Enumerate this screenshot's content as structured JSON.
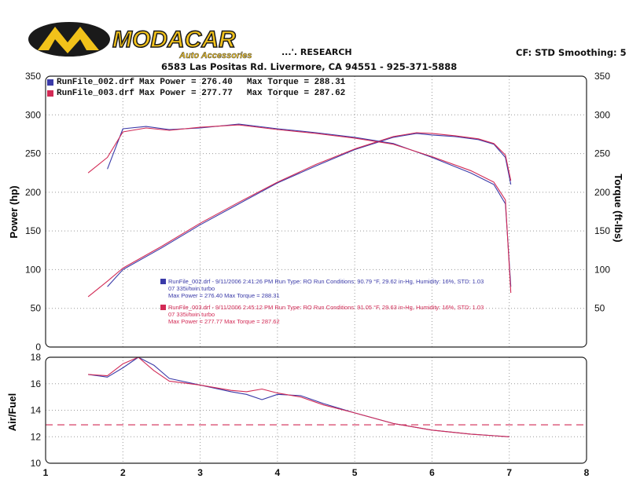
{
  "header": {
    "logo_text": "MODACAR",
    "logo_sub": "Auto Accessories",
    "shop_fragment": "...'. RESEARCH",
    "address": "6583 Las Positas Rd. Livermore, CA 94551 - 925-371-5888",
    "cf_smoothing": "CF: STD  Smoothing: 5"
  },
  "legend": [
    {
      "file": "RunFile_002.drf",
      "power_label": "Max Power = 276.40",
      "torque_label": "Max Torque = 288.31",
      "color": "#3a3aa8"
    },
    {
      "file": "RunFile_003.drf",
      "power_label": "Max Power = 277.77",
      "torque_label": "Max Torque = 287.62",
      "color": "#d22a55"
    }
  ],
  "runinfo": [
    {
      "line1": "RunFile_002.drf - 9/11/2006 2:41:26 PM  Run Type: RO  Run Conditions: 90.79 °F, 29.62 in-Hg,  Humidity: 16%, STD: 1.03",
      "line2": "07 335i/twin turbo",
      "line3": "Max Power = 276.40   Max Torque = 288.31",
      "color": "#3a3aa8"
    },
    {
      "line1": "RunFile_003.drf - 9/11/2006 2:45:12 PM  Run Type: RO  Run Conditions: 91.05 °F, 29.63 in-Hg,  Humidity: 16%, STD: 1.03",
      "line2": "07 335i/twin turbo",
      "line3": "Max Power = 277.77   Max Torque = 287.62",
      "color": "#d22a55"
    }
  ],
  "chart_data": [
    {
      "type": "line",
      "ylabel": "Power (hp)",
      "ylabel_right": "Torque (ft-lbs)",
      "xlim": [
        1,
        8
      ],
      "ylim": [
        0,
        350
      ],
      "yticks": [
        0,
        50,
        100,
        150,
        200,
        250,
        300,
        350
      ],
      "yticks_right": [
        50,
        100,
        150,
        200,
        250,
        300,
        350
      ],
      "grid": true,
      "series": [
        {
          "name": "RunFile_002.drf",
          "metric": "power",
          "color": "#3a3aa8",
          "x": [
            1.8,
            2.0,
            2.5,
            3.0,
            3.5,
            4.0,
            4.5,
            5.0,
            5.5,
            5.8,
            6.0,
            6.3,
            6.6,
            6.8,
            6.95,
            7.02
          ],
          "y": [
            78,
            100,
            128,
            158,
            185,
            212,
            234,
            255,
            271,
            276,
            274,
            272,
            268,
            262,
            245,
            210
          ]
        },
        {
          "name": "RunFile_003.drf",
          "metric": "power",
          "color": "#d22a55",
          "x": [
            1.55,
            1.8,
            2.0,
            2.5,
            3.0,
            3.5,
            4.0,
            4.5,
            5.0,
            5.5,
            5.8,
            6.0,
            6.3,
            6.6,
            6.8,
            6.95,
            7.02
          ],
          "y": [
            65,
            85,
            102,
            130,
            160,
            187,
            213,
            236,
            256,
            272,
            277,
            276,
            273,
            269,
            263,
            248,
            215
          ]
        },
        {
          "name": "RunFile_002.drf",
          "metric": "torque",
          "color": "#3a3aa8",
          "x": [
            1.8,
            2.0,
            2.3,
            2.6,
            3.0,
            3.5,
            4.0,
            4.5,
            5.0,
            5.5,
            6.0,
            6.5,
            6.8,
            6.95,
            7.02
          ],
          "y": [
            230,
            282,
            285,
            281,
            283,
            288,
            282,
            277,
            271,
            263,
            245,
            225,
            210,
            185,
            78
          ]
        },
        {
          "name": "RunFile_003.drf",
          "metric": "torque",
          "color": "#d22a55",
          "x": [
            1.55,
            1.8,
            2.0,
            2.3,
            2.6,
            3.0,
            3.5,
            4.0,
            4.5,
            5.0,
            5.5,
            6.0,
            6.5,
            6.8,
            6.95,
            7.02
          ],
          "y": [
            225,
            245,
            278,
            283,
            280,
            284,
            287,
            281,
            276,
            270,
            262,
            246,
            228,
            213,
            190,
            70
          ]
        }
      ]
    },
    {
      "type": "line",
      "ylabel": "Air/Fuel",
      "xlim": [
        1,
        8
      ],
      "ylim": [
        10,
        18
      ],
      "xticks": [
        1,
        2,
        3,
        4,
        5,
        6,
        7,
        8
      ],
      "yticks": [
        10,
        12,
        14,
        16,
        18
      ],
      "grid": true,
      "reference_line": 12.9,
      "series": [
        {
          "name": "RunFile_002.drf",
          "color": "#3a3aa8",
          "x": [
            1.55,
            1.8,
            2.0,
            2.2,
            2.4,
            2.6,
            3.0,
            3.4,
            3.6,
            3.8,
            4.0,
            4.3,
            4.6,
            5.0,
            5.5,
            6.0,
            6.5,
            7.0
          ],
          "y": [
            16.7,
            16.5,
            17.2,
            18.0,
            17.4,
            16.4,
            15.9,
            15.4,
            15.2,
            14.8,
            15.2,
            15.1,
            14.5,
            13.8,
            13.0,
            12.5,
            12.2,
            12.0
          ]
        },
        {
          "name": "RunFile_003.drf",
          "color": "#d22a55",
          "x": [
            1.55,
            1.8,
            2.0,
            2.2,
            2.4,
            2.6,
            3.0,
            3.4,
            3.6,
            3.8,
            4.0,
            4.3,
            4.6,
            5.0,
            5.5,
            6.0,
            6.5,
            7.0
          ],
          "y": [
            16.7,
            16.6,
            17.5,
            18.0,
            17.0,
            16.2,
            15.9,
            15.5,
            15.4,
            15.6,
            15.3,
            15.0,
            14.4,
            13.8,
            13.0,
            12.5,
            12.2,
            12.0
          ]
        }
      ]
    }
  ]
}
